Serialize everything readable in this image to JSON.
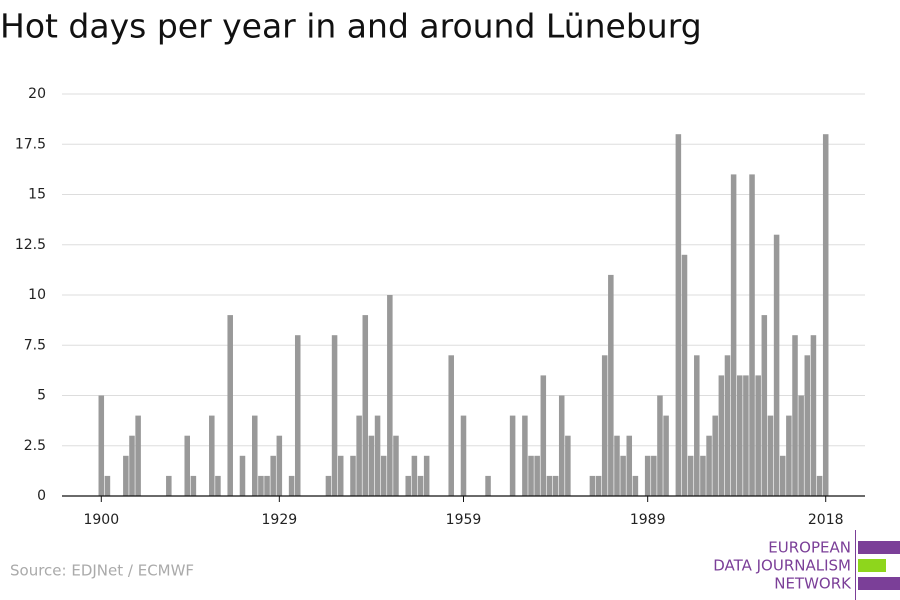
{
  "chart_data": {
    "type": "bar",
    "title": "Hot days per year in and around Lüneburg",
    "source": "Source: EDJNet / ECMWF",
    "logo": [
      "EUROPEAN",
      "DATA JOURNALISM",
      "NETWORK"
    ],
    "color": "#999999",
    "x": [
      1900,
      1901,
      1902,
      1903,
      1904,
      1905,
      1906,
      1907,
      1908,
      1909,
      1910,
      1911,
      1912,
      1913,
      1914,
      1915,
      1916,
      1917,
      1918,
      1919,
      1920,
      1921,
      1922,
      1923,
      1924,
      1925,
      1926,
      1927,
      1928,
      1929,
      1930,
      1931,
      1932,
      1933,
      1934,
      1935,
      1936,
      1937,
      1938,
      1939,
      1940,
      1941,
      1942,
      1943,
      1944,
      1945,
      1946,
      1947,
      1948,
      1949,
      1950,
      1951,
      1952,
      1953,
      1954,
      1955,
      1956,
      1957,
      1958,
      1959,
      1960,
      1961,
      1962,
      1963,
      1964,
      1965,
      1966,
      1967,
      1968,
      1969,
      1970,
      1971,
      1972,
      1973,
      1974,
      1975,
      1976,
      1977,
      1978,
      1979,
      1980,
      1981,
      1982,
      1983,
      1984,
      1985,
      1986,
      1987,
      1988,
      1989,
      1990,
      1991,
      1992,
      1993,
      1994,
      1995,
      1996,
      1997,
      1998,
      1999,
      2000,
      2001,
      2002,
      2003,
      2004,
      2005,
      2006,
      2007,
      2008,
      2009,
      2010,
      2011,
      2012,
      2013,
      2014,
      2015,
      2016,
      2017,
      2018
    ],
    "values": [
      5,
      1,
      0,
      0,
      2,
      3,
      4,
      0,
      0,
      0,
      0,
      1,
      0,
      0,
      3,
      1,
      0,
      0,
      4,
      1,
      0,
      9,
      0,
      2,
      0,
      4,
      1,
      1,
      2,
      3,
      0,
      1,
      8,
      0,
      0,
      0,
      0,
      1,
      8,
      2,
      0,
      2,
      4,
      9,
      3,
      4,
      2,
      10,
      3,
      0,
      1,
      2,
      1,
      2,
      0,
      0,
      0,
      7,
      0,
      4,
      0,
      0,
      0,
      1,
      0,
      0,
      0,
      4,
      0,
      4,
      2,
      2,
      6,
      1,
      1,
      5,
      3,
      0,
      0,
      0,
      1,
      1,
      7,
      11,
      3,
      2,
      3,
      1,
      0,
      2,
      2,
      5,
      4,
      0,
      18,
      12,
      2,
      7,
      2,
      3,
      4,
      6,
      7,
      16,
      6,
      6,
      16,
      6,
      9,
      4,
      13,
      2,
      4,
      8,
      5,
      7,
      8,
      1,
      18
    ],
    "xlim": [
      1893.6,
      2024.4
    ],
    "xticks": [
      1900,
      1929,
      1959,
      1989,
      2018
    ],
    "ylim": [
      0,
      20
    ],
    "yticks": [
      0,
      2.5,
      5,
      7.5,
      10,
      12.5,
      15,
      17.5,
      20
    ],
    "grid": true
  }
}
